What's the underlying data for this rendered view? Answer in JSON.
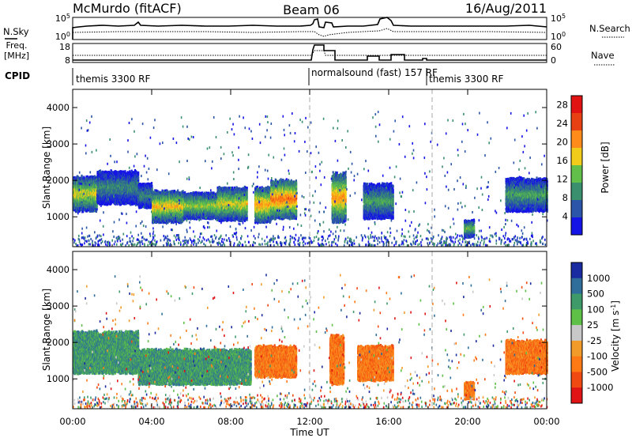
{
  "header": {
    "station": "McMurdo (fitACF)",
    "beam": "Beam 06",
    "date": "16/Aug/2011"
  },
  "top_panels": {
    "nsky_label": "N.Sky",
    "nsky_ticks": [
      "10^5",
      "10^0"
    ],
    "nsearch_label": "N.Search",
    "nsearch_ticks": [
      "10^5",
      "10^0"
    ],
    "freq_label_line1": "Freq.",
    "freq_label_line2": "[MHz]",
    "freq_ticks": [
      "18",
      "8"
    ],
    "nave_label": "Nave",
    "nave_ticks": [
      "60",
      "0"
    ],
    "cpid_label": "CPID",
    "cpid_segments": [
      {
        "text": "themis 3300 RF",
        "start_hour": 0
      },
      {
        "text": "normalsound (fast) 157 RF",
        "start_hour": 12.0
      },
      {
        "text": "themis 3300 RF",
        "start_hour": 18.2
      }
    ]
  },
  "chart_data": [
    {
      "type": "heatmap",
      "name": "power-panel",
      "ylabel": "Slant Range [km]",
      "xlabel": "Time UT",
      "xlim": [
        0,
        24
      ],
      "ylim": [
        180,
        4500
      ],
      "x_ticks": [
        "00:00",
        "04:00",
        "08:00",
        "12:00",
        "16:00",
        "20:00",
        "00:00"
      ],
      "y_ticks": [
        1000,
        2000,
        3000,
        4000
      ],
      "colorbar_label": "Power [dB]",
      "colorbar_ticks": [
        4,
        8,
        12,
        16,
        20,
        24,
        28
      ],
      "colorbar_range": [
        0,
        30
      ],
      "colors": [
        "#1414e6",
        "#2a55a8",
        "#3a8f6e",
        "#62c04a",
        "#f2cc1a",
        "#ff8c1a",
        "#e84012",
        "#e11212"
      ],
      "echo_regions": [
        {
          "t0": 0.0,
          "t1": 1.2,
          "r0": 1100,
          "r1": 2100,
          "power": 20
        },
        {
          "t0": 1.2,
          "t1": 3.3,
          "r0": 1300,
          "r1": 2250,
          "power": 12
        },
        {
          "t0": 3.3,
          "t1": 4.0,
          "r0": 1200,
          "r1": 1900,
          "power": 12
        },
        {
          "t0": 4.0,
          "t1": 5.6,
          "r0": 800,
          "r1": 1700,
          "power": 22
        },
        {
          "t0": 5.6,
          "t1": 7.3,
          "r0": 900,
          "r1": 1650,
          "power": 18
        },
        {
          "t0": 7.3,
          "t1": 8.8,
          "r0": 850,
          "r1": 1800,
          "power": 20
        },
        {
          "t0": 9.2,
          "t1": 10.0,
          "r0": 800,
          "r1": 1800,
          "power": 24
        },
        {
          "t0": 10.0,
          "t1": 11.3,
          "r0": 900,
          "r1": 2000,
          "power": 26
        },
        {
          "t0": 13.1,
          "t1": 13.8,
          "r0": 800,
          "r1": 2200,
          "power": 24
        },
        {
          "t0": 14.7,
          "t1": 16.2,
          "r0": 900,
          "r1": 1900,
          "power": 14
        },
        {
          "t0": 19.8,
          "t1": 20.3,
          "r0": 400,
          "r1": 900,
          "power": 16
        },
        {
          "t0": 21.9,
          "t1": 24.0,
          "r0": 1100,
          "r1": 2050,
          "power": 14
        }
      ]
    },
    {
      "type": "heatmap",
      "name": "velocity-panel",
      "ylabel": "Slant Range [km]",
      "xlabel": "Time UT",
      "xlim": [
        0,
        24
      ],
      "ylim": [
        180,
        4500
      ],
      "x_ticks": [
        "00:00",
        "04:00",
        "08:00",
        "12:00",
        "16:00",
        "20:00",
        "00:00"
      ],
      "y_ticks": [
        1000,
        2000,
        3000,
        4000
      ],
      "colorbar_label": "Velocity [m s^-1]",
      "colorbar_ticks": [
        "1000",
        "500",
        "100",
        "25",
        "-25",
        "-100",
        "-500",
        "-1000"
      ],
      "colors": [
        "#1a2aa0",
        "#2f6e9a",
        "#3f9a6a",
        "#5ec046",
        "#c8c8c8",
        "#f29a2a",
        "#ff7a14",
        "#f04a12",
        "#e01414"
      ],
      "echo_regions": [
        {
          "t0": 0.0,
          "t1": 3.3,
          "r0": 1100,
          "r1": 2300,
          "velocity": "25..100"
        },
        {
          "t0": 3.3,
          "t1": 9.0,
          "r0": 800,
          "r1": 1800,
          "velocity": "25..100"
        },
        {
          "t0": 9.2,
          "t1": 11.3,
          "r0": 1000,
          "r1": 1900,
          "velocity": "-100..-500"
        },
        {
          "t0": 13.0,
          "t1": 13.7,
          "r0": 800,
          "r1": 2200,
          "velocity": "-100..-500"
        },
        {
          "t0": 14.4,
          "t1": 16.2,
          "r0": 900,
          "r1": 1900,
          "velocity": "-100..-500"
        },
        {
          "t0": 19.8,
          "t1": 20.3,
          "r0": 400,
          "r1": 900,
          "velocity": "-100..-500"
        },
        {
          "t0": 21.9,
          "t1": 24.0,
          "r0": 1100,
          "r1": 2050,
          "velocity": "-100..-500"
        }
      ]
    }
  ]
}
